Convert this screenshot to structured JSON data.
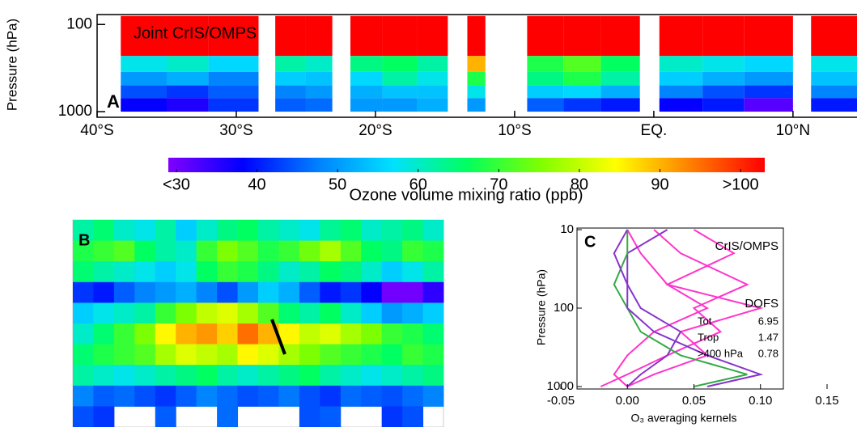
{
  "chart_data": [
    {
      "type": "heatmap",
      "label": "Joint CrIS/OMPS",
      "panel": "A",
      "ylabel": "Pressure (hPa)",
      "ylog": true,
      "xlim": [
        -40,
        14.6
      ],
      "ylim": [
        77,
        1160
      ],
      "xticks": [
        {
          "value": -40,
          "label": "40°S"
        },
        {
          "value": -30,
          "label": "30°S"
        },
        {
          "value": -20,
          "label": "20°S"
        },
        {
          "value": -10,
          "label": "10°S"
        },
        {
          "value": 0,
          "label": "EQ."
        },
        {
          "value": 10,
          "label": "10°N"
        }
      ],
      "yticks": [
        100,
        1000
      ],
      "x_bins": [
        -38.3,
        -35,
        -32,
        -28.4,
        -27.2,
        -25,
        -23.1,
        -21.8,
        -19.5,
        -17,
        -14.8,
        -13.4,
        -12.1,
        -9.1,
        -6.5,
        -3.8,
        -1,
        0.4,
        3.5,
        6.5,
        10,
        11.3,
        14.6
      ],
      "y_bins": [
        80,
        230,
        350,
        500,
        700,
        1000
      ],
      "values": [
        [
          105,
          58,
          50,
          44,
          38
        ],
        [
          105,
          60,
          52,
          42,
          36
        ],
        [
          105,
          56,
          48,
          45,
          42
        ],
        null,
        [
          105,
          62,
          55,
          48,
          45
        ],
        [
          105,
          60,
          54,
          50,
          46
        ],
        null,
        [
          105,
          64,
          56,
          52,
          50
        ],
        [
          105,
          66,
          62,
          54,
          50
        ],
        [
          105,
          62,
          58,
          54,
          52
        ],
        null,
        [
          105,
          90,
          68,
          58,
          50
        ],
        null,
        [
          105,
          68,
          64,
          55,
          45
        ],
        [
          105,
          72,
          68,
          56,
          42
        ],
        [
          105,
          66,
          62,
          52,
          40
        ],
        null,
        [
          105,
          60,
          55,
          48,
          38
        ],
        [
          105,
          58,
          52,
          44,
          40
        ],
        [
          105,
          56,
          50,
          42,
          32
        ],
        null,
        [
          105,
          58,
          54,
          48,
          40
        ]
      ]
    },
    {
      "type": "colorbar",
      "xlabel": "Ozone volume mixing ratio (ppb)",
      "xlim": [
        29,
        103
      ],
      "xticks": [
        {
          "value": 30,
          "label": "<30"
        },
        40,
        50,
        60,
        70,
        80,
        90,
        {
          "value": 100,
          "label": ">100"
        }
      ],
      "colors": [
        "#8000ff",
        "#0000ff",
        "#0080ff",
        "#00e0ff",
        "#00ff60",
        "#80ff00",
        "#ffff00",
        "#ff8000",
        "#ff0000"
      ]
    },
    {
      "type": "map",
      "panel": "B",
      "xlim": [
        -180,
        180
      ],
      "ylim": [
        -90,
        90
      ],
      "x_bins": [
        -180,
        -160,
        -140,
        -120,
        -100,
        -80,
        -60,
        -40,
        -20,
        0,
        20,
        40,
        60,
        80,
        100,
        120,
        140,
        160,
        180
      ],
      "y_bins": [
        90,
        72,
        54,
        36,
        18,
        0,
        -18,
        -36,
        -54,
        -72,
        -90
      ],
      "values": [
        [
          62,
          65,
          60,
          58,
          62,
          55,
          60,
          64,
          66,
          62,
          60,
          58,
          63,
          65,
          60,
          62,
          64,
          60
        ],
        [
          68,
          70,
          72,
          66,
          62,
          60,
          70,
          75,
          72,
          68,
          70,
          74,
          78,
          72,
          66,
          64,
          70,
          68
        ],
        [
          65,
          62,
          60,
          58,
          55,
          58,
          66,
          70,
          68,
          64,
          60,
          62,
          66,
          64,
          60,
          55,
          58,
          62
        ],
        [
          42,
          40,
          45,
          48,
          50,
          52,
          48,
          44,
          50,
          55,
          52,
          45,
          40,
          42,
          38,
          30,
          30,
          35
        ],
        [
          55,
          58,
          60,
          62,
          70,
          75,
          80,
          82,
          78,
          72,
          65,
          62,
          66,
          60,
          55,
          50,
          52,
          55
        ],
        [
          60,
          65,
          70,
          75,
          85,
          90,
          92,
          88,
          95,
          90,
          85,
          80,
          82,
          78,
          75,
          70,
          68,
          65
        ],
        [
          65,
          68,
          70,
          72,
          78,
          82,
          80,
          78,
          85,
          82,
          78,
          75,
          72,
          70,
          68,
          66,
          70,
          68
        ],
        [
          62,
          60,
          58,
          60,
          62,
          64,
          66,
          62,
          60,
          62,
          64,
          66,
          62,
          60,
          58,
          60,
          62,
          64
        ],
        [
          48,
          45,
          46,
          44,
          42,
          45,
          48,
          46,
          44,
          45,
          47,
          44,
          42,
          46,
          45,
          44,
          46,
          48
        ],
        [
          44,
          42,
          null,
          null,
          45,
          null,
          null,
          46,
          null,
          null,
          null,
          44,
          45,
          null,
          null,
          42,
          44,
          null
        ]
      ]
    },
    {
      "type": "line",
      "panel": "C",
      "label": "CrIS/OMPS",
      "ylabel": "Pressure (hPa)",
      "xlabel": "O₃ averaging kernels",
      "ylog": true,
      "xlim": [
        -0.05,
        0.15
      ],
      "ylim": [
        10,
        1000
      ],
      "xticks": [
        {
          "value": -0.05,
          "label": "-0.05"
        },
        {
          "value": 0,
          "label": "0.00"
        },
        {
          "value": 0.05,
          "label": "0.05"
        },
        {
          "value": 0.1,
          "label": "0.10"
        },
        {
          "value": 0.15,
          "label": "0.15"
        }
      ],
      "yticks": [
        10,
        100,
        1000
      ],
      "y": [
        10,
        20,
        50,
        100,
        200,
        400,
        700,
        1000
      ],
      "series": [
        {
          "color": "#ff33cc",
          "values": [
            0.05,
            0.08,
            0.03,
            0.06,
            0.02,
            0.0,
            -0.01,
            0.0
          ]
        },
        {
          "color": "#ff33cc",
          "values": [
            0.02,
            0.04,
            0.09,
            0.05,
            0.07,
            0.03,
            0.0,
            -0.02
          ]
        },
        {
          "color": "#ff33cc",
          "values": [
            0.0,
            0.01,
            0.03,
            0.1,
            0.04,
            0.06,
            0.02,
            0.0
          ]
        },
        {
          "color": "#8833cc",
          "values": [
            0.03,
            0.0,
            0.0,
            0.01,
            0.04,
            0.03,
            0.01,
            0.0
          ]
        },
        {
          "color": "#33aa44",
          "values": [
            0.0,
            0.0,
            -0.01,
            0.0,
            0.01,
            0.04,
            0.09,
            0.05
          ]
        },
        {
          "color": "#8833cc",
          "values": [
            0.0,
            -0.01,
            0.0,
            0.0,
            0.02,
            0.06,
            0.1,
            0.06
          ]
        }
      ],
      "table_title": "DOFS",
      "table": [
        [
          "Tot",
          "6.95"
        ],
        [
          "Trop",
          "1.47"
        ],
        [
          ">400 hPa",
          "0.78"
        ]
      ]
    }
  ]
}
